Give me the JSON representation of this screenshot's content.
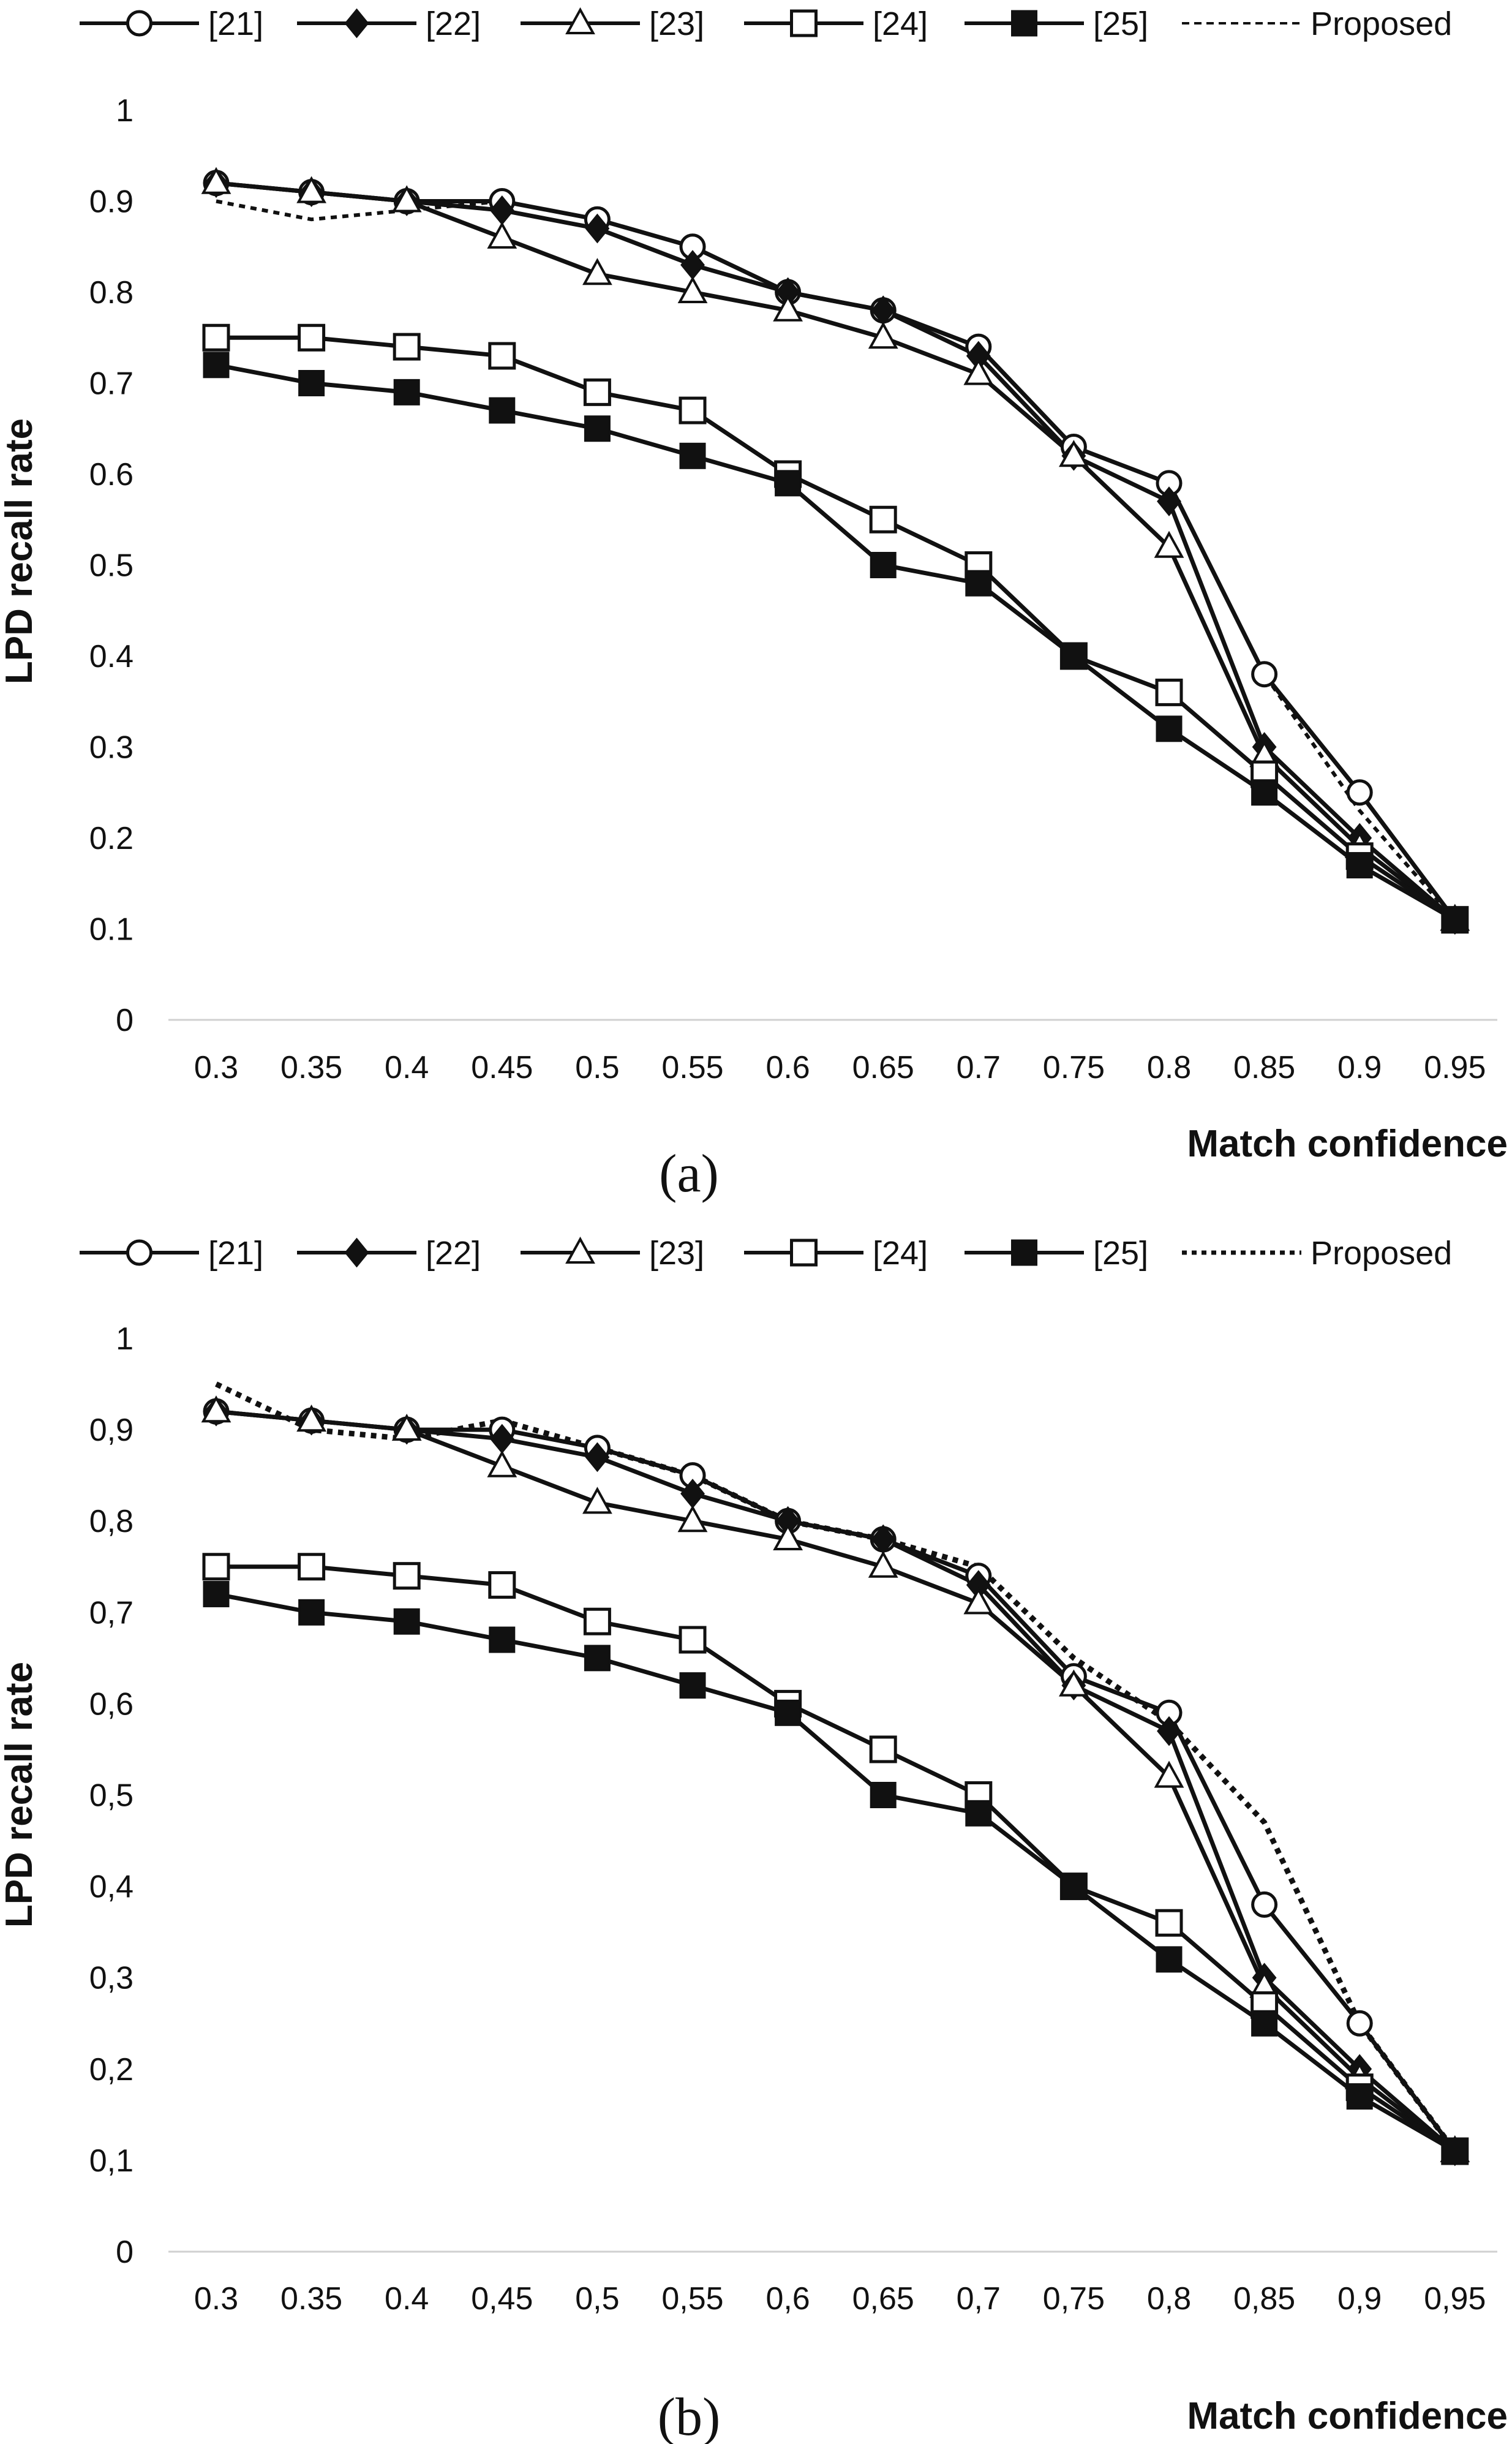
{
  "chart_data": [
    {
      "type": "line",
      "panel": "(a)",
      "xlabel": "Match confidence",
      "ylabel": "LPD recall rate",
      "x_tick_labels": [
        "0.3",
        "0.35",
        "0.4",
        "0.45",
        "0.5",
        "0.55",
        "0.6",
        "0.65",
        "0.7",
        "0.75",
        "0.8",
        "0.85",
        "0.9",
        "0.95"
      ],
      "y_tick_labels": [
        "0",
        "0.1",
        "0.2",
        "0.3",
        "0.4",
        "0.5",
        "0.6",
        "0.7",
        "0.8",
        "0.9",
        "1"
      ],
      "ylim": [
        0,
        1
      ],
      "grid": false,
      "legend_position": "top",
      "series": [
        {
          "name": "[21]",
          "marker": "circle-open",
          "style": "solid",
          "values": [
            0.92,
            0.91,
            0.9,
            0.9,
            0.88,
            0.85,
            0.8,
            0.78,
            0.74,
            0.63,
            0.59,
            0.38,
            0.25,
            0.11
          ]
        },
        {
          "name": "[22]",
          "marker": "diamond-filled",
          "style": "solid",
          "values": [
            0.92,
            0.91,
            0.9,
            0.89,
            0.87,
            0.83,
            0.8,
            0.78,
            0.73,
            0.62,
            0.57,
            0.3,
            0.2,
            0.11
          ]
        },
        {
          "name": "[23]",
          "marker": "triangle-open",
          "style": "solid",
          "values": [
            0.92,
            0.91,
            0.9,
            0.86,
            0.82,
            0.8,
            0.78,
            0.75,
            0.71,
            0.62,
            0.52,
            0.29,
            0.19,
            0.11
          ]
        },
        {
          "name": "[24]",
          "marker": "square-open",
          "style": "solid",
          "values": [
            0.75,
            0.75,
            0.74,
            0.73,
            0.69,
            0.67,
            0.6,
            0.55,
            0.5,
            0.4,
            0.36,
            0.27,
            0.18,
            0.11
          ]
        },
        {
          "name": "[25]",
          "marker": "square-filled",
          "style": "solid",
          "values": [
            0.72,
            0.7,
            0.69,
            0.67,
            0.65,
            0.62,
            0.59,
            0.5,
            0.48,
            0.4,
            0.32,
            0.25,
            0.17,
            0.11
          ]
        },
        {
          "name": "Proposed",
          "marker": "none",
          "style": "dotted",
          "values": [
            0.9,
            0.88,
            0.89,
            0.9,
            0.88,
            0.85,
            0.8,
            0.78,
            0.74,
            0.63,
            0.59,
            0.38,
            0.23,
            0.11
          ]
        }
      ],
      "caption": "(a)"
    },
    {
      "type": "line",
      "panel": "(b)",
      "xlabel": "Match confidence",
      "ylabel": "LPD recall rate",
      "x_tick_labels": [
        "0.3",
        "0.35",
        "0.4",
        "0,45",
        "0,5",
        "0,55",
        "0,6",
        "0,65",
        "0,7",
        "0,75",
        "0,8",
        "0,85",
        "0,9",
        "0,95"
      ],
      "y_tick_labels": [
        "0",
        "0,1",
        "0,2",
        "0,3",
        "0,4",
        "0,5",
        "0,6",
        "0,7",
        "0,8",
        "0,9",
        "1"
      ],
      "ylim": [
        0,
        1
      ],
      "grid": false,
      "legend_position": "top",
      "series": [
        {
          "name": "[21]",
          "marker": "circle-open",
          "style": "solid",
          "values": [
            0.92,
            0.91,
            0.9,
            0.9,
            0.88,
            0.85,
            0.8,
            0.78,
            0.74,
            0.63,
            0.59,
            0.38,
            0.25,
            0.11
          ]
        },
        {
          "name": "[22]",
          "marker": "diamond-filled",
          "style": "solid",
          "values": [
            0.92,
            0.91,
            0.9,
            0.89,
            0.87,
            0.83,
            0.8,
            0.78,
            0.73,
            0.62,
            0.57,
            0.3,
            0.2,
            0.11
          ]
        },
        {
          "name": "[23]",
          "marker": "triangle-open",
          "style": "solid",
          "values": [
            0.92,
            0.91,
            0.9,
            0.86,
            0.82,
            0.8,
            0.78,
            0.75,
            0.71,
            0.62,
            0.52,
            0.29,
            0.19,
            0.11
          ]
        },
        {
          "name": "[24]",
          "marker": "square-open",
          "style": "solid",
          "values": [
            0.75,
            0.75,
            0.74,
            0.73,
            0.69,
            0.67,
            0.6,
            0.55,
            0.5,
            0.4,
            0.36,
            0.27,
            0.18,
            0.11
          ]
        },
        {
          "name": "[25]",
          "marker": "square-filled",
          "style": "solid",
          "values": [
            0.72,
            0.7,
            0.69,
            0.67,
            0.65,
            0.62,
            0.59,
            0.5,
            0.48,
            0.4,
            0.32,
            0.25,
            0.17,
            0.11
          ]
        },
        {
          "name": "Proposed",
          "marker": "none",
          "style": "dotted",
          "values": [
            0.95,
            0.9,
            0.89,
            0.91,
            0.88,
            0.85,
            0.8,
            0.78,
            0.75,
            0.65,
            0.58,
            0.47,
            0.25,
            0.11
          ]
        }
      ],
      "caption": "(b)"
    }
  ]
}
